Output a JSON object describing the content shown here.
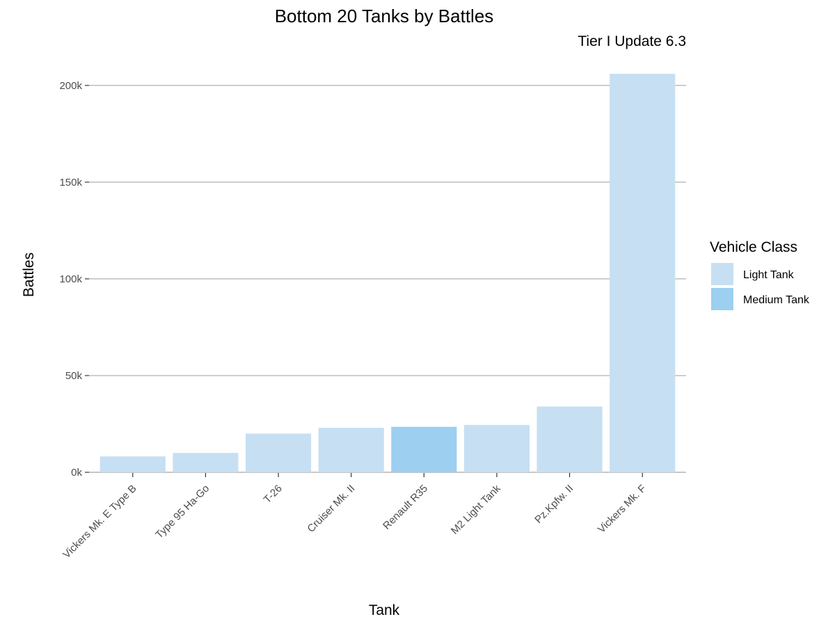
{
  "chart_data": {
    "type": "bar",
    "title": "Bottom 20 Tanks by Battles",
    "subtitle": "Tier I Update 6.3",
    "xlabel": "Tank",
    "ylabel": "Battles",
    "categories": [
      "Vickers Mk. E Type B",
      "Type 95 Ha-Go",
      "T-26",
      "Cruiser Mk. II",
      "Renault R35",
      "M2 Light Tank",
      "Pz.Kpfw. II",
      "Vickers Mk. F"
    ],
    "values": [
      8200,
      10000,
      20000,
      23000,
      23500,
      24500,
      34000,
      206000
    ],
    "classes": [
      "Light Tank",
      "Light Tank",
      "Light Tank",
      "Light Tank",
      "Medium Tank",
      "Light Tank",
      "Light Tank",
      "Light Tank"
    ],
    "ylim": [
      0,
      210000
    ],
    "yticks": [
      0,
      50000,
      100000,
      150000,
      200000
    ],
    "ytick_labels": [
      "0k",
      "50k",
      "100k",
      "150k",
      "200k"
    ],
    "grid": "horizontal",
    "legend": {
      "title": "Vehicle Class",
      "placement": "right",
      "items": [
        {
          "label": "Light Tank",
          "color": "#c6dff3"
        },
        {
          "label": "Medium Tank",
          "color": "#9dcff0"
        }
      ]
    },
    "colors": {
      "Light Tank": "#c6dff3",
      "Medium Tank": "#9dcff0",
      "grid": "#bdbdbd"
    }
  }
}
